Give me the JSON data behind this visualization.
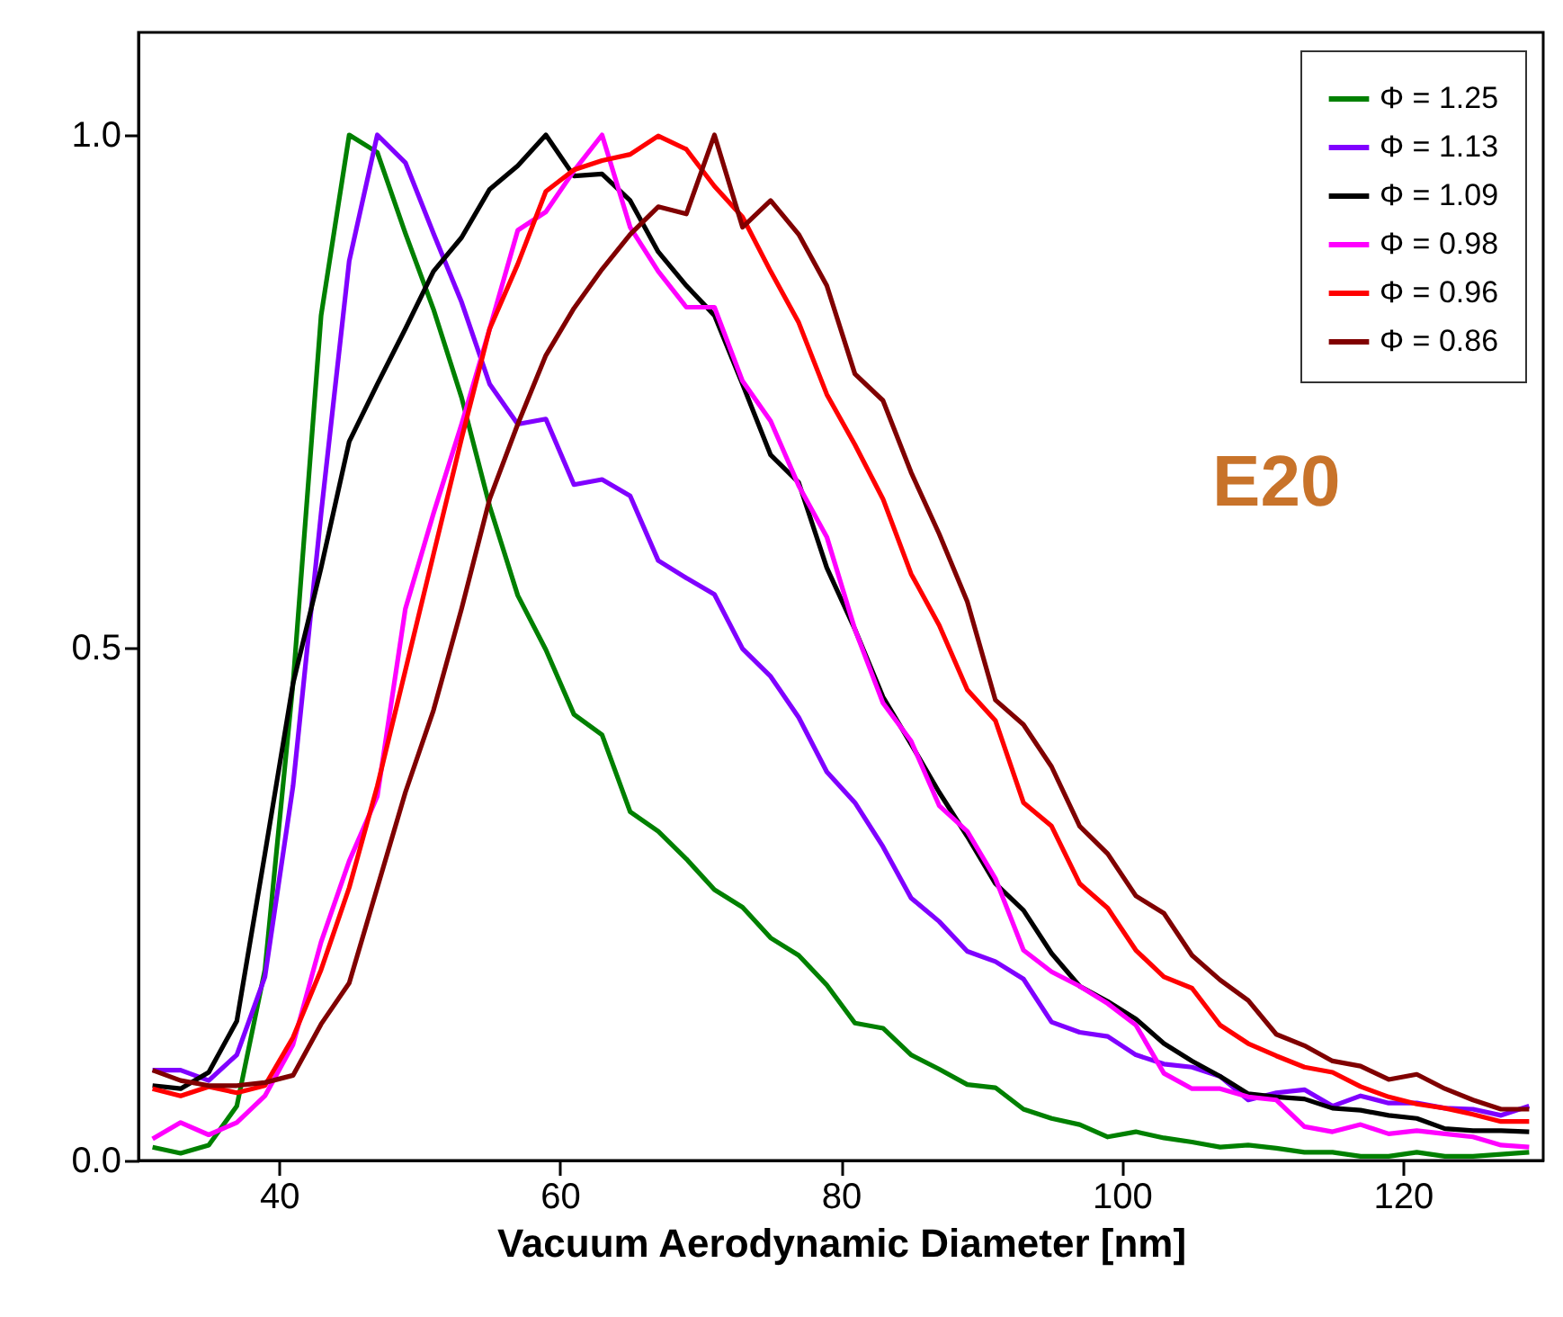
{
  "chart_data": {
    "type": "line",
    "xlabel": "Vacuum Aerodynamic Diameter [nm]",
    "x": [
      31,
      33,
      35,
      37,
      39,
      41,
      43,
      45,
      47,
      49,
      51,
      53,
      55,
      57,
      59,
      61,
      63,
      65,
      67,
      69,
      71,
      73,
      75,
      77,
      79,
      81,
      83,
      85,
      87,
      89,
      91,
      93,
      95,
      97,
      99,
      101,
      103,
      105,
      107,
      109,
      111,
      113,
      115,
      117,
      119,
      121,
      123,
      125,
      127,
      129
    ],
    "series": [
      {
        "name": "Φ = 1.25",
        "color": "#008000",
        "values": [
          0.013,
          0.007,
          0.015,
          0.053,
          0.186,
          0.465,
          0.824,
          1.0,
          0.983,
          0.904,
          0.83,
          0.744,
          0.638,
          0.551,
          0.498,
          0.435,
          0.415,
          0.34,
          0.321,
          0.294,
          0.264,
          0.247,
          0.217,
          0.2,
          0.171,
          0.134,
          0.129,
          0.103,
          0.089,
          0.074,
          0.071,
          0.05,
          0.041,
          0.035,
          0.023,
          0.028,
          0.022,
          0.018,
          0.013,
          0.015,
          0.012,
          0.008,
          0.008,
          0.004,
          0.004,
          0.008,
          0.004,
          0.004,
          0.006,
          0.008
        ]
      },
      {
        "name": "Φ = 1.13",
        "color": "#8000ff",
        "values": [
          0.088,
          0.088,
          0.078,
          0.103,
          0.179,
          0.365,
          0.631,
          0.877,
          1.0,
          0.973,
          0.904,
          0.837,
          0.757,
          0.718,
          0.723,
          0.659,
          0.664,
          0.648,
          0.585,
          0.568,
          0.552,
          0.499,
          0.472,
          0.432,
          0.379,
          0.349,
          0.306,
          0.256,
          0.233,
          0.204,
          0.194,
          0.177,
          0.135,
          0.125,
          0.121,
          0.103,
          0.094,
          0.091,
          0.082,
          0.059,
          0.066,
          0.069,
          0.053,
          0.063,
          0.056,
          0.056,
          0.051,
          0.05,
          0.044,
          0.053
        ]
      },
      {
        "name": "Φ = 1.09",
        "color": "#000000",
        "values": [
          0.073,
          0.07,
          0.086,
          0.136,
          0.299,
          0.465,
          0.578,
          0.701,
          0.757,
          0.811,
          0.867,
          0.9,
          0.947,
          0.97,
          1.0,
          0.96,
          0.962,
          0.936,
          0.886,
          0.853,
          0.824,
          0.757,
          0.688,
          0.661,
          0.578,
          0.518,
          0.452,
          0.406,
          0.359,
          0.316,
          0.27,
          0.244,
          0.202,
          0.17,
          0.155,
          0.138,
          0.114,
          0.097,
          0.082,
          0.065,
          0.062,
          0.06,
          0.051,
          0.049,
          0.044,
          0.041,
          0.031,
          0.029,
          0.029,
          0.028
        ]
      },
      {
        "name": "Φ = 0.98",
        "color": "#ff00ff",
        "values": [
          0.021,
          0.037,
          0.025,
          0.037,
          0.063,
          0.113,
          0.213,
          0.292,
          0.355,
          0.538,
          0.631,
          0.718,
          0.811,
          0.907,
          0.925,
          0.965,
          1.0,
          0.91,
          0.867,
          0.832,
          0.832,
          0.76,
          0.721,
          0.658,
          0.608,
          0.518,
          0.446,
          0.409,
          0.346,
          0.321,
          0.275,
          0.205,
          0.184,
          0.17,
          0.153,
          0.132,
          0.085,
          0.07,
          0.07,
          0.062,
          0.059,
          0.033,
          0.028,
          0.035,
          0.026,
          0.029,
          0.026,
          0.023,
          0.015,
          0.013
        ]
      },
      {
        "name": "Φ = 0.96",
        "color": "#ff0000",
        "values": [
          0.07,
          0.063,
          0.072,
          0.066,
          0.073,
          0.12,
          0.186,
          0.266,
          0.365,
          0.478,
          0.591,
          0.704,
          0.811,
          0.874,
          0.945,
          0.966,
          0.975,
          0.981,
          0.999,
          0.986,
          0.95,
          0.92,
          0.867,
          0.817,
          0.747,
          0.698,
          0.645,
          0.572,
          0.522,
          0.459,
          0.429,
          0.349,
          0.326,
          0.27,
          0.246,
          0.205,
          0.179,
          0.168,
          0.132,
          0.114,
          0.102,
          0.091,
          0.086,
          0.072,
          0.062,
          0.055,
          0.051,
          0.045,
          0.038,
          0.038
        ]
      },
      {
        "name": "Φ = 0.86",
        "color": "#800000",
        "values": [
          0.088,
          0.078,
          0.073,
          0.073,
          0.076,
          0.083,
          0.133,
          0.173,
          0.266,
          0.359,
          0.439,
          0.538,
          0.645,
          0.718,
          0.785,
          0.831,
          0.869,
          0.903,
          0.93,
          0.923,
          1.0,
          0.91,
          0.936,
          0.903,
          0.853,
          0.767,
          0.741,
          0.671,
          0.611,
          0.545,
          0.449,
          0.425,
          0.384,
          0.326,
          0.299,
          0.258,
          0.241,
          0.2,
          0.176,
          0.156,
          0.123,
          0.112,
          0.097,
          0.092,
          0.079,
          0.084,
          0.07,
          0.059,
          0.05,
          0.05
        ]
      }
    ],
    "xlim": [
      30,
      130
    ],
    "xticks": [
      40,
      60,
      80,
      100,
      120
    ],
    "ylim": [
      0,
      1.1
    ],
    "yticks": [
      {
        "value": 0,
        "label": "0.0"
      },
      {
        "value": 0.5,
        "label": "0.5"
      },
      {
        "value": 1,
        "label": "1.0"
      }
    ],
    "annotations": [
      "E20"
    ],
    "legend": "top right",
    "grid": false,
    "marker": "none",
    "line_style": "solid"
  }
}
